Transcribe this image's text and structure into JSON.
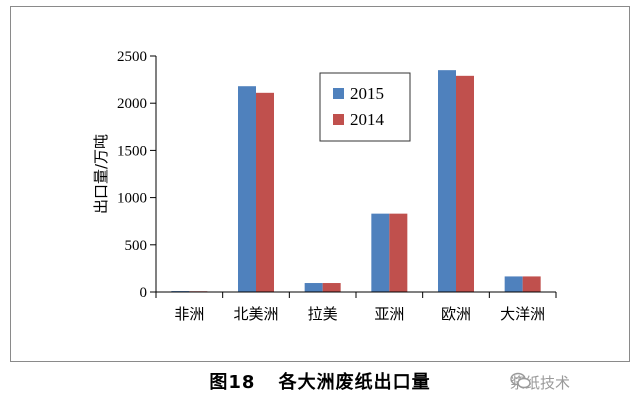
{
  "caption": {
    "fig_number": "图18",
    "title": "各大洲废纸出口量"
  },
  "watermark": {
    "text": "浆纸技术",
    "icon": "wechat-icon"
  },
  "chart_data": {
    "type": "bar",
    "title": "",
    "xlabel": "",
    "ylabel": "出口量/万吨",
    "ylim": [
      0,
      2500
    ],
    "yticks": [
      0,
      500,
      1000,
      1500,
      2000,
      2500
    ],
    "grid": false,
    "legend_position": "top-center",
    "categories": [
      "非洲",
      "北美洲",
      "拉美",
      "亚洲",
      "欧洲",
      "大洋洲"
    ],
    "series": [
      {
        "name": "2015",
        "color": "#4F81BD",
        "values": [
          10,
          2180,
          95,
          830,
          2350,
          165
        ]
      },
      {
        "name": "2014",
        "color": "#C0504D",
        "values": [
          8,
          2110,
          95,
          830,
          2290,
          165
        ]
      }
    ]
  }
}
